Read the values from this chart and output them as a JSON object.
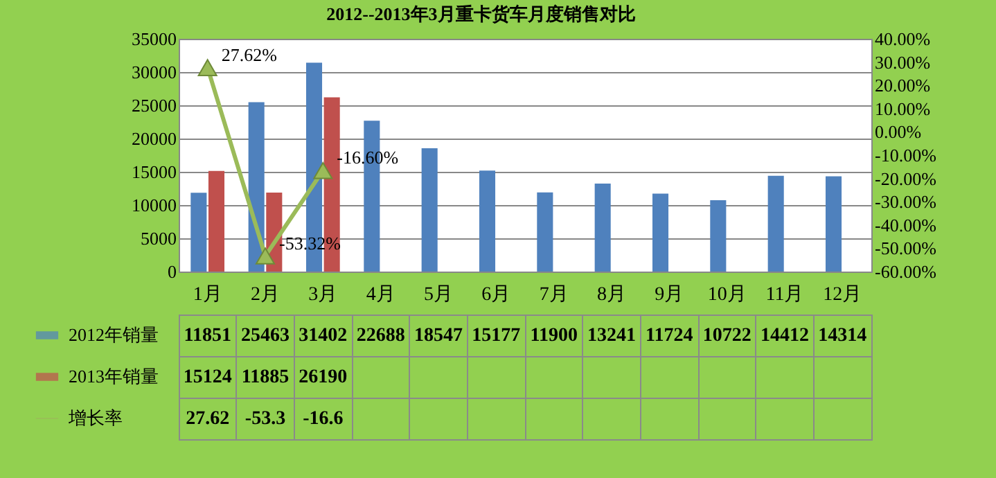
{
  "chart_data": {
    "type": "bar",
    "title": "2012--2013年3月重卡货车月度销售对比",
    "categories": [
      "1月",
      "2月",
      "3月",
      "4月",
      "5月",
      "6月",
      "7月",
      "8月",
      "9月",
      "10月",
      "11月",
      "12月"
    ],
    "series": [
      {
        "name": "2012年销量",
        "color": "#4f81bd",
        "values": [
          11851,
          25463,
          31402,
          22688,
          18547,
          15177,
          11900,
          13241,
          11724,
          10722,
          14412,
          14314
        ]
      },
      {
        "name": "2013年销量",
        "color": "#c0504d",
        "values": [
          15124,
          11885,
          26190,
          null,
          null,
          null,
          null,
          null,
          null,
          null,
          null,
          null
        ]
      },
      {
        "name": "增长率",
        "type": "line",
        "axis": "y2",
        "color": "#9bbb59",
        "marker": "triangle",
        "values": [
          27.62,
          -53.32,
          -16.6,
          null,
          null,
          null,
          null,
          null,
          null,
          null,
          null,
          null
        ],
        "value_labels": [
          "27.62",
          "-53.3",
          "-16.6",
          null,
          null,
          null,
          null,
          null,
          null,
          null,
          null,
          null
        ]
      }
    ],
    "data_labels": true,
    "ylim": [
      0,
      35000
    ],
    "yticks": [
      0,
      5000,
      10000,
      15000,
      20000,
      25000,
      30000,
      35000
    ],
    "y2lim": [
      -60,
      40
    ],
    "y2ticks": [
      {
        "value": -60,
        "label": "-60.00%"
      },
      {
        "value": -50,
        "label": "-50.00%"
      },
      {
        "value": -40,
        "label": "-40.00%"
      },
      {
        "value": -30,
        "label": "-30.00%"
      },
      {
        "value": -20,
        "label": "-20.00%"
      },
      {
        "value": -10,
        "label": "-10.00%"
      },
      {
        "value": 0,
        "label": "0.00%"
      },
      {
        "value": 10,
        "label": "10.00%"
      },
      {
        "value": 20,
        "label": "20.00%"
      },
      {
        "value": 30,
        "label": "30.00%"
      },
      {
        "value": 40,
        "label": "40.00%"
      }
    ],
    "grid": "y",
    "legend": "bottom left",
    "annotations": [
      "27.62%",
      "-53.32%",
      "-16.60%"
    ]
  }
}
